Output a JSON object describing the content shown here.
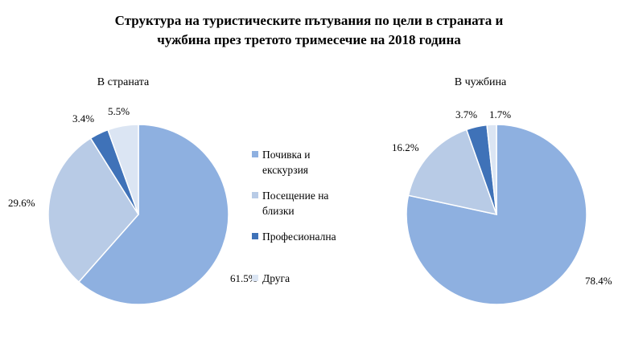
{
  "title_lines": [
    "Структура на туристическите пътувания по цели в страната и",
    "чужбина през третото тримесечие на 2018 година"
  ],
  "colors": {
    "Почивка и екскурзия": "#8eb0e0",
    "Посещение на близки": "#b8cbe6",
    "Професионална": "#3f72b8",
    "Друга": "#dbe5f3"
  },
  "legend": [
    {
      "lines": [
        "Почивка и",
        "екскурзия"
      ],
      "series": "Почивка и екскурзия"
    },
    {
      "lines": [
        "Посещение на",
        "близки"
      ],
      "series": "Посещение на близки"
    },
    {
      "lines": [
        "Професионална"
      ],
      "series": "Професионална"
    },
    {
      "lines": [
        "Друга"
      ],
      "series": "Друга"
    }
  ],
  "chart_data": [
    {
      "type": "pie",
      "title": "В страната",
      "categories": [
        "Почивка и екскурзия",
        "Посещение на близки",
        "Професионална",
        "Друга"
      ],
      "values": [
        61.5,
        29.6,
        3.4,
        5.5
      ],
      "labels": [
        "61.5%",
        "29.6%",
        "3.4%",
        "5.5%"
      ],
      "start": "12 o'clock",
      "direction": "clockwise",
      "legend": "center-right"
    },
    {
      "type": "pie",
      "title": "В чужбина",
      "categories": [
        "Почивка и екскурзия",
        "Посещение на близки",
        "Професионална",
        "Друга"
      ],
      "values": [
        78.4,
        16.2,
        3.7,
        1.7
      ],
      "labels": [
        "78.4%",
        "16.2%",
        "3.7%",
        "1.7%"
      ],
      "start": "12 o'clock",
      "direction": "clockwise",
      "legend": "center-right"
    }
  ]
}
